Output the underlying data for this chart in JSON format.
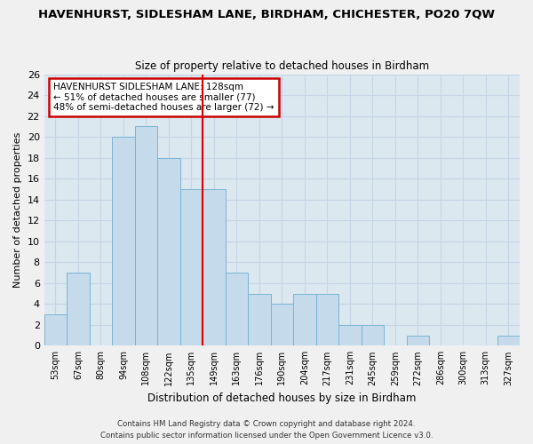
{
  "title": "HAVENHURST, SIDLESHAM LANE, BIRDHAM, CHICHESTER, PO20 7QW",
  "subtitle": "Size of property relative to detached houses in Birdham",
  "xlabel": "Distribution of detached houses by size in Birdham",
  "ylabel": "Number of detached properties",
  "bin_labels": [
    "53sqm",
    "67sqm",
    "80sqm",
    "94sqm",
    "108sqm",
    "122sqm",
    "135sqm",
    "149sqm",
    "163sqm",
    "176sqm",
    "190sqm",
    "204sqm",
    "217sqm",
    "231sqm",
    "245sqm",
    "259sqm",
    "272sqm",
    "286sqm",
    "300sqm",
    "313sqm",
    "327sqm"
  ],
  "bar_heights": [
    3,
    7,
    0,
    20,
    21,
    18,
    15,
    15,
    7,
    5,
    4,
    5,
    5,
    2,
    2,
    0,
    1,
    0,
    0,
    0,
    1
  ],
  "bar_color": "#c5daea",
  "bar_edge_color": "#7ab4d4",
  "red_line_x": 6.5,
  "annotation_text": "HAVENHURST SIDLESHAM LANE: 128sqm\n← 51% of detached houses are smaller (77)\n48% of semi-detached houses are larger (72) →",
  "annotation_box_color": "#ffffff",
  "annotation_box_edge_color": "#cc0000",
  "ylim": [
    0,
    26
  ],
  "yticks": [
    0,
    2,
    4,
    6,
    8,
    10,
    12,
    14,
    16,
    18,
    20,
    22,
    24,
    26
  ],
  "grid_color": "#c5d5e5",
  "plot_bg_color": "#dce8f0",
  "fig_bg_color": "#f0f0f0",
  "footer_line1": "Contains HM Land Registry data © Crown copyright and database right 2024.",
  "footer_line2": "Contains public sector information licensed under the Open Government Licence v3.0."
}
